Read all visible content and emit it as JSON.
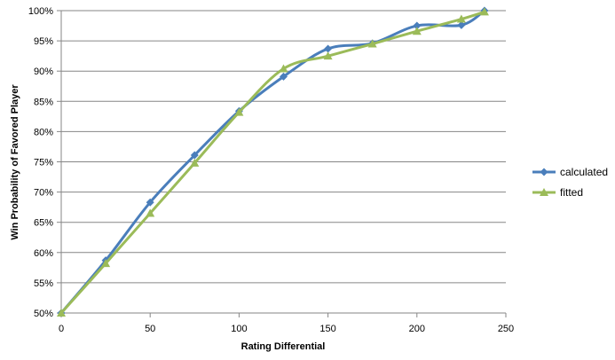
{
  "chart_data": {
    "type": "line",
    "xlabel": "Rating Differential",
    "ylabel": "Win Probability of Favored Player",
    "xlim": [
      0,
      250
    ],
    "ylim": [
      50,
      100
    ],
    "x_ticks": [
      "0",
      "50",
      "100",
      "150",
      "200",
      "250"
    ],
    "y_ticks": [
      "50%",
      "55%",
      "60%",
      "65%",
      "70%",
      "75%",
      "80%",
      "85%",
      "90%",
      "95%",
      "100%"
    ],
    "grid": "horizontal",
    "legend_position": "right",
    "series": [
      {
        "name": "calculated",
        "color": "#4a7ebb",
        "marker": "diamond",
        "x": [
          0,
          25,
          50,
          75,
          100,
          125,
          150,
          175,
          200,
          225,
          238
        ],
        "y": [
          50,
          58.7,
          68.3,
          76.1,
          83.4,
          89.1,
          93.7,
          94.6,
          97.5,
          97.6,
          100
        ]
      },
      {
        "name": "fitted",
        "color": "#9bbb59",
        "marker": "triangle",
        "x": [
          0,
          25,
          50,
          75,
          100,
          125,
          150,
          175,
          200,
          225,
          238
        ],
        "y": [
          50,
          58.2,
          66.5,
          74.8,
          83.2,
          90.4,
          92.5,
          94.5,
          96.6,
          98.6,
          99.8
        ]
      }
    ]
  }
}
